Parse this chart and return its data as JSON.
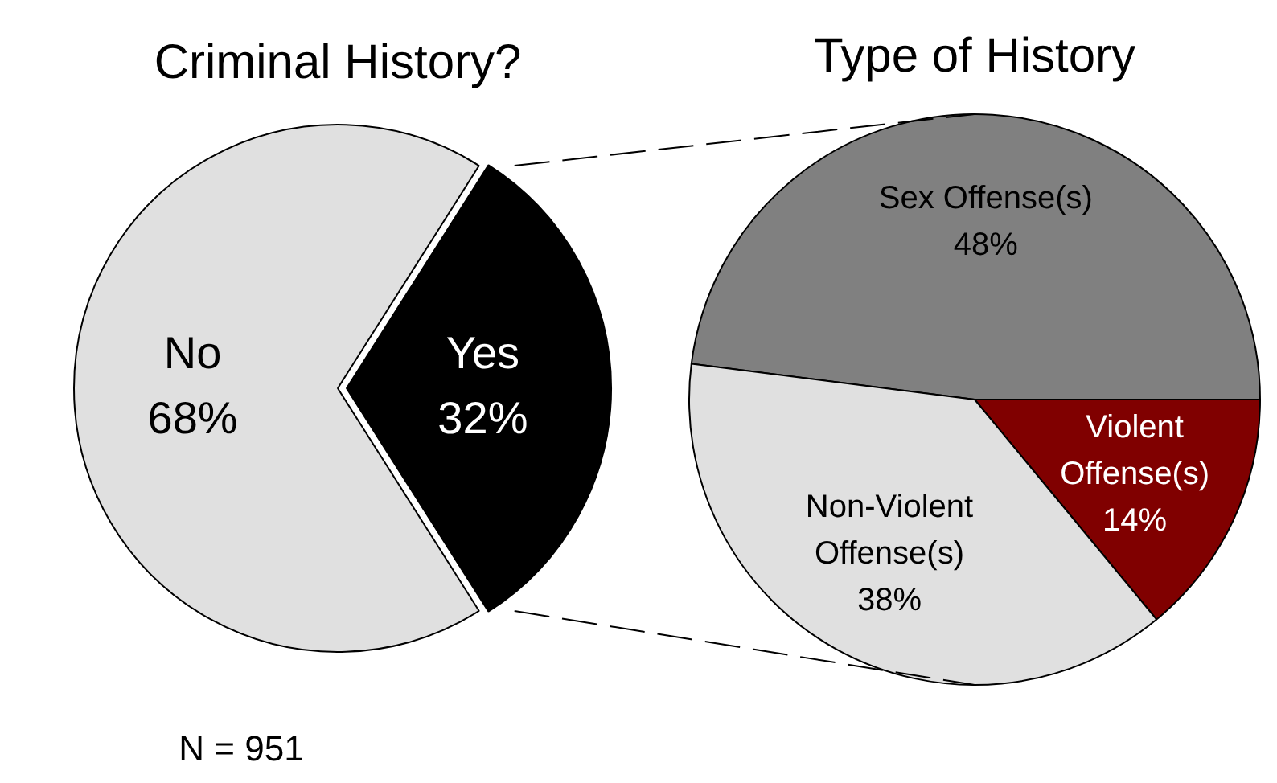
{
  "chart_data": [
    {
      "type": "pie",
      "title": "Criminal History?",
      "categories": [
        "No",
        "Yes"
      ],
      "values": [
        68,
        32
      ],
      "colors": [
        "#e0e0e0",
        "#000000"
      ],
      "value_labels": [
        "68%",
        "32%"
      ],
      "annotations": [
        "N = 951"
      ]
    },
    {
      "type": "pie",
      "title": "Type of History",
      "categories": [
        "Sex Offense(s)",
        "Violent Offense(s)",
        "Non-Violent Offense(s)"
      ],
      "values": [
        48,
        14,
        38
      ],
      "colors": [
        "#808080",
        "#800000",
        "#e0e0e0"
      ],
      "value_labels": [
        "48%",
        "14%",
        "38%"
      ]
    }
  ]
}
